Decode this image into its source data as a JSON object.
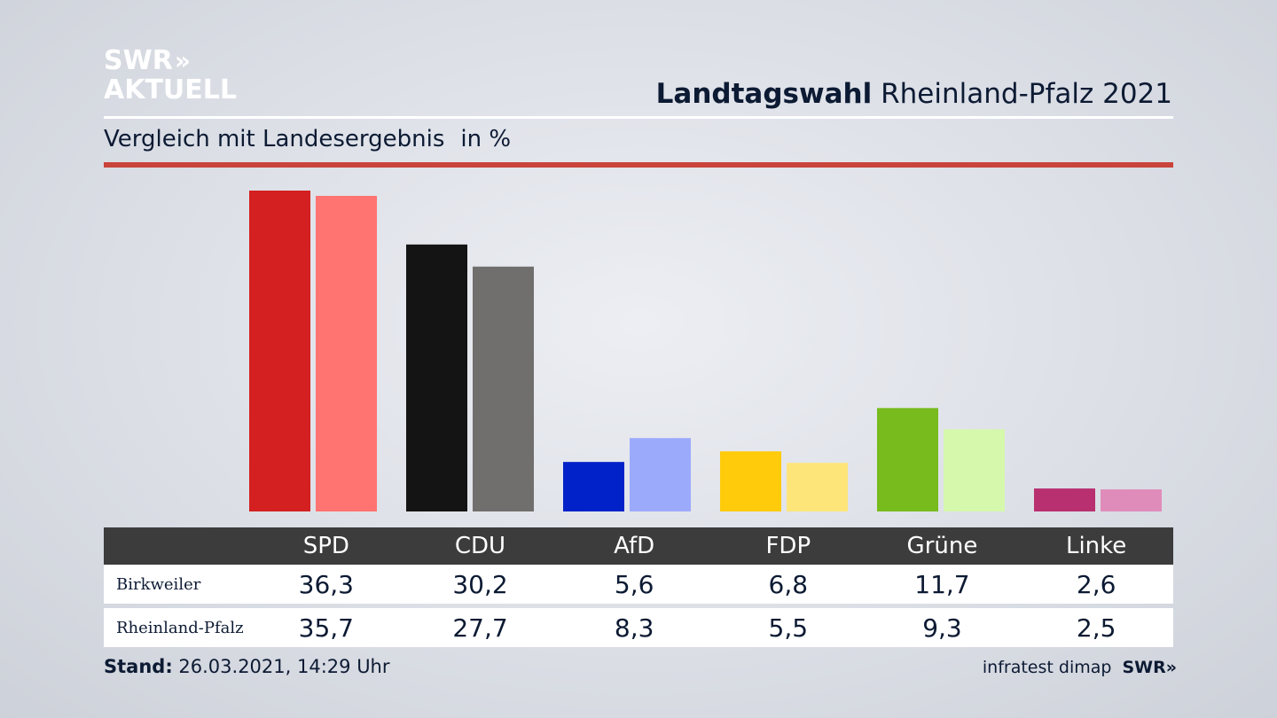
{
  "brand": {
    "logo_line1": "SWR",
    "logo_chevrons": "»",
    "logo_line2": "AKTUELL",
    "source": "infratest dimap",
    "footer_logo": "SWR",
    "footer_chevrons": "»"
  },
  "header": {
    "title_bold": "Landtagswahl",
    "title_rest": "Rheinland-Pfalz 2021",
    "subtitle": "Vergleich mit Landesergebnis",
    "unit": "in %"
  },
  "footer": {
    "stand_label": "Stand:",
    "stand_value": "26.03.2021, 14:29 Uhr"
  },
  "chart_data": {
    "type": "bar",
    "categories": [
      "SPD",
      "CDU",
      "AfD",
      "FDP",
      "Grüne",
      "Linke"
    ],
    "series": [
      {
        "name": "Birkweiler",
        "values": [
          36.3,
          30.2,
          5.6,
          6.8,
          11.7,
          2.6
        ],
        "labels": [
          "36,3",
          "30,2",
          "5,6",
          "6,8",
          "11,7",
          "2,6"
        ],
        "colors": [
          "#d42020",
          "#141414",
          "#0022c8",
          "#ffcb0a",
          "#77bb1c",
          "#b8306f"
        ]
      },
      {
        "name": "Rheinland-Pfalz",
        "values": [
          35.7,
          27.7,
          8.3,
          5.5,
          9.3,
          2.5
        ],
        "labels": [
          "35,7",
          "27,7",
          "8,3",
          "5,5",
          "9,3",
          "2,5"
        ],
        "colors": [
          "#ff7370",
          "#706f6d",
          "#9caafc",
          "#fee57a",
          "#d5f8ad",
          "#e08cbb"
        ]
      }
    ],
    "ylim": [
      0,
      36.3
    ],
    "grid": false,
    "legend": "table-below"
  }
}
